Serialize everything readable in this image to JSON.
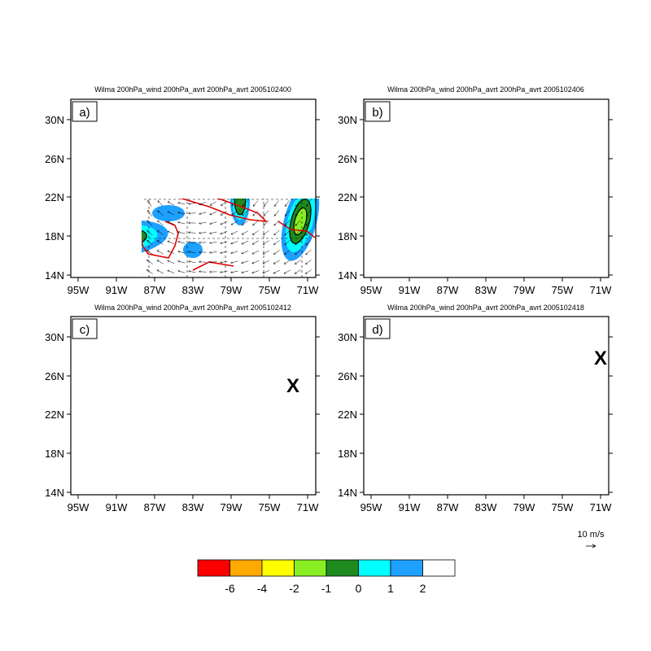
{
  "panels": [
    {
      "id": "a",
      "label": "a)",
      "title": "Wilma 200hPa_wind 200hPa_avrt 200hPa_avrt 2005102400",
      "storm_color": "#3a1aa8",
      "marker": ""
    },
    {
      "id": "b",
      "label": "b)",
      "title": "Wilma 200hPa_wind 200hPa_avrt 200hPa_avrt 2005102406",
      "storm_color": "#e83ee8",
      "marker": ""
    },
    {
      "id": "c",
      "label": "c)",
      "title": "Wilma 200hPa_wind 200hPa_avrt 200hPa_avrt 2005102412",
      "storm_color": "#3a1aa8",
      "marker": "X"
    },
    {
      "id": "d",
      "label": "d)",
      "title": "Wilma 200hPa_wind 200hPa_avrt 200hPa_avrt 2005102418",
      "storm_color": "#e83ee8",
      "marker": "X"
    }
  ],
  "axes": {
    "lat_labels": [
      "30N",
      "26N",
      "22N",
      "18N",
      "14N"
    ],
    "lon_labels": [
      "95W",
      "91W",
      "87W",
      "83W",
      "79W",
      "75W",
      "71W"
    ]
  },
  "reference_vector": {
    "label": "10 m/s"
  },
  "colorbar": {
    "colors": [
      "#ff0000",
      "#ffaa00",
      "#ffff00",
      "#88ee22",
      "#1f8a1f",
      "#00ffff",
      "#1ea0ff",
      "#ffffff"
    ],
    "labels": [
      "-6",
      "-4",
      "-2",
      "-1",
      "0",
      "1",
      "2"
    ]
  },
  "colors": {
    "coast": "#e00000",
    "land_contour": "#000000"
  }
}
